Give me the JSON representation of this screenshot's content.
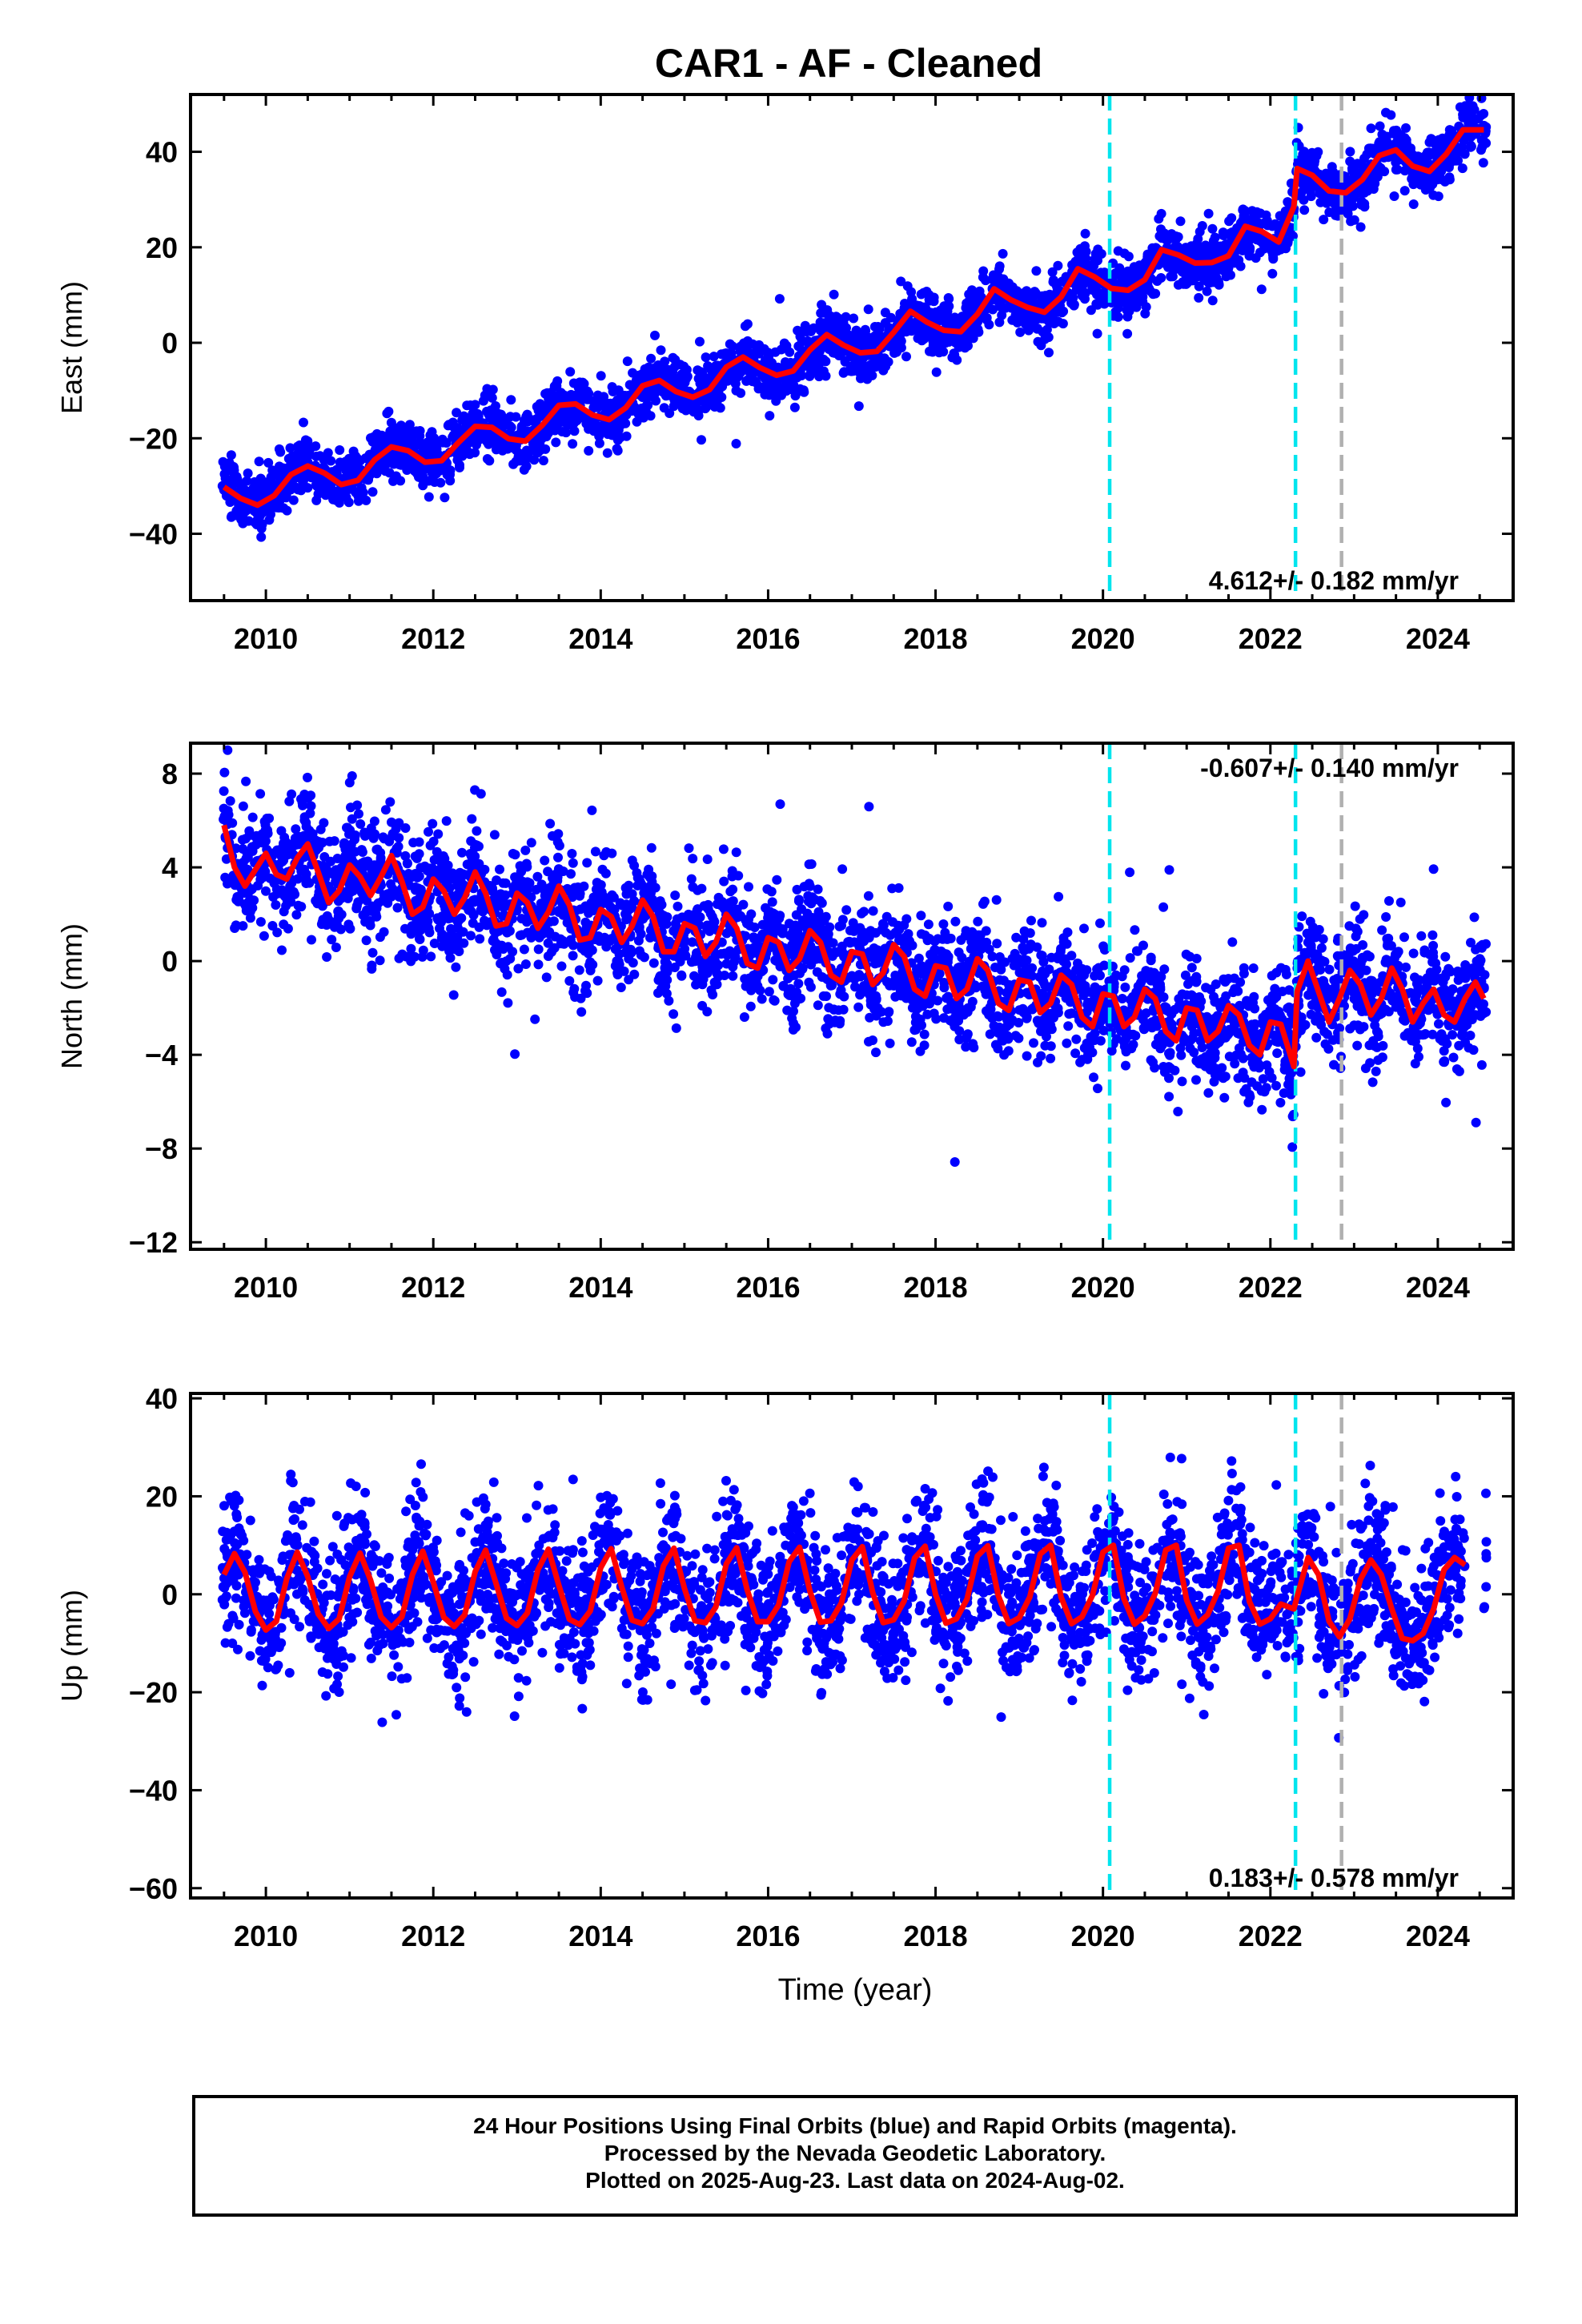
{
  "chart_data": {
    "title": "CAR1  - AF - Cleaned",
    "xlabel": "Time (year)",
    "xlim": [
      2009.1,
      2024.9
    ],
    "x_ticks": [
      "2010",
      "2012",
      "2014",
      "2016",
      "2018",
      "2020",
      "2022",
      "2024"
    ],
    "colors": {
      "observations": "#0000ff",
      "model": "#ff0000",
      "offset_cyan": "#00e5ee",
      "offset_gray": "#b0b0b0"
    },
    "offset_lines": [
      {
        "x": 2020.08,
        "color": "cyan"
      },
      {
        "x": 2022.3,
        "color": "cyan"
      },
      {
        "x": 2022.85,
        "color": "gray"
      }
    ],
    "panels": [
      {
        "type": "scatter",
        "ylabel": "East (mm)",
        "ylim": [
          -54,
          52
        ],
        "y_ticks": [
          "40",
          "20",
          "0",
          "−20",
          "−40"
        ],
        "rate_label": "4.612+/- 0.182 mm/yr",
        "rate_position": "bottom-right",
        "model_x": [
          2009.5,
          2009.7,
          2009.9,
          2010.1,
          2010.3,
          2010.5,
          2010.7,
          2010.9,
          2011.1,
          2011.3,
          2011.5,
          2011.7,
          2011.9,
          2012.1,
          2012.3,
          2012.5,
          2012.7,
          2012.9,
          2013.1,
          2013.3,
          2013.5,
          2013.7,
          2013.9,
          2014.1,
          2014.3,
          2014.5,
          2014.7,
          2014.9,
          2015.1,
          2015.3,
          2015.5,
          2015.7,
          2015.9,
          2016.1,
          2016.3,
          2016.5,
          2016.7,
          2016.9,
          2017.1,
          2017.3,
          2017.5,
          2017.7,
          2017.9,
          2018.1,
          2018.3,
          2018.5,
          2018.7,
          2018.9,
          2019.1,
          2019.3,
          2019.5,
          2019.7,
          2019.9,
          2020.1,
          2020.3,
          2020.5,
          2020.7,
          2020.9,
          2021.1,
          2021.3,
          2021.5,
          2021.7,
          2021.9,
          2022.1,
          2022.28,
          2022.32,
          2022.5,
          2022.7,
          2022.9,
          2023.1,
          2023.3,
          2023.5,
          2023.7,
          2023.9,
          2024.1,
          2024.3,
          2024.55
        ],
        "model_y": [
          -30.2,
          -32.6,
          -34.0,
          -32.0,
          -27.6,
          -25.8,
          -27.3,
          -29.7,
          -28.8,
          -24.5,
          -21.8,
          -22.6,
          -25.0,
          -24.7,
          -20.9,
          -17.5,
          -17.7,
          -20.1,
          -20.6,
          -17.3,
          -13.1,
          -12.8,
          -15.1,
          -16.1,
          -13.6,
          -9.0,
          -7.9,
          -10.2,
          -11.4,
          -9.8,
          -5.1,
          -3.0,
          -5.2,
          -6.8,
          -5.9,
          -1.5,
          1.7,
          -0.5,
          -2.1,
          -1.8,
          2.2,
          6.6,
          4.3,
          2.6,
          2.3,
          6.0,
          11.3,
          9.0,
          7.4,
          6.4,
          9.6,
          15.5,
          13.8,
          11.4,
          11.0,
          13.2,
          19.5,
          18.4,
          16.7,
          16.8,
          18.2,
          24.4,
          23.3,
          21.1,
          28.5,
          36.5,
          35.1,
          31.8,
          31.4,
          34.2,
          39.2,
          40.4,
          37.0,
          35.9,
          39.5,
          44.6,
          44.6
        ]
      },
      {
        "type": "scatter",
        "ylabel": "North (mm)",
        "ylim": [
          -12.3,
          9.3
        ],
        "y_ticks": [
          "8",
          "4",
          "0",
          "−4",
          "−8",
          "−12"
        ],
        "rate_label": "-0.607+/- 0.140 mm/yr",
        "rate_position": "top-right",
        "model_x": [
          2009.5,
          2009.625,
          2009.75,
          2009.875,
          2010.0,
          2010.125,
          2010.25,
          2010.375,
          2010.5,
          2010.625,
          2010.75,
          2010.875,
          2011.0,
          2011.125,
          2011.25,
          2011.375,
          2011.5,
          2011.625,
          2011.75,
          2011.875,
          2012.0,
          2012.125,
          2012.25,
          2012.375,
          2012.5,
          2012.625,
          2012.75,
          2012.875,
          2013.0,
          2013.125,
          2013.25,
          2013.375,
          2013.5,
          2013.625,
          2013.75,
          2013.875,
          2014.0,
          2014.125,
          2014.25,
          2014.375,
          2014.5,
          2014.625,
          2014.75,
          2014.875,
          2015.0,
          2015.125,
          2015.25,
          2015.375,
          2015.5,
          2015.625,
          2015.75,
          2015.875,
          2016.0,
          2016.125,
          2016.25,
          2016.375,
          2016.5,
          2016.625,
          2016.75,
          2016.875,
          2017.0,
          2017.125,
          2017.25,
          2017.375,
          2017.5,
          2017.625,
          2017.75,
          2017.875,
          2018.0,
          2018.125,
          2018.25,
          2018.375,
          2018.5,
          2018.625,
          2018.75,
          2018.875,
          2019.0,
          2019.125,
          2019.25,
          2019.375,
          2019.5,
          2019.625,
          2019.75,
          2019.875,
          2020.0,
          2020.125,
          2020.25,
          2020.375,
          2020.5,
          2020.625,
          2020.75,
          2020.875,
          2021.0,
          2021.125,
          2021.25,
          2021.375,
          2021.5,
          2021.625,
          2021.75,
          2021.875,
          2022.0,
          2022.125,
          2022.28,
          2022.32,
          2022.45,
          2022.575,
          2022.7,
          2022.825,
          2022.95,
          2023.075,
          2023.2,
          2023.325,
          2023.45,
          2023.575,
          2023.7,
          2023.825,
          2023.95,
          2024.075,
          2024.2,
          2024.325,
          2024.45,
          2024.55
        ],
        "model_y": [
          5.8,
          4.0,
          3.2,
          3.9,
          4.6,
          3.7,
          3.5,
          4.4,
          5.0,
          3.8,
          2.5,
          3.0,
          4.1,
          3.6,
          2.8,
          3.6,
          4.5,
          3.4,
          2.0,
          2.3,
          3.5,
          3.0,
          2.0,
          2.7,
          3.8,
          2.9,
          1.5,
          1.6,
          2.9,
          2.5,
          1.4,
          2.1,
          3.2,
          2.4,
          0.9,
          1.0,
          2.2,
          1.9,
          0.8,
          1.5,
          2.6,
          1.9,
          0.4,
          0.4,
          1.6,
          1.4,
          0.2,
          0.8,
          2.0,
          1.4,
          -0.1,
          -0.3,
          1.0,
          0.8,
          -0.4,
          0.1,
          1.3,
          0.8,
          -0.6,
          -0.9,
          0.4,
          0.3,
          -1.0,
          -0.5,
          0.7,
          0.2,
          -1.2,
          -1.5,
          -0.2,
          -0.3,
          -1.6,
          -1.2,
          0.1,
          -0.4,
          -1.8,
          -2.1,
          -0.8,
          -0.9,
          -2.2,
          -1.8,
          -0.6,
          -1.0,
          -2.4,
          -2.8,
          -1.4,
          -1.5,
          -2.8,
          -2.4,
          -1.2,
          -1.6,
          -3.0,
          -3.4,
          -2.0,
          -2.1,
          -3.4,
          -3.0,
          -1.9,
          -2.3,
          -3.6,
          -4.0,
          -2.6,
          -2.7,
          -4.5,
          -1.3,
          0.0,
          -1.3,
          -2.6,
          -1.6,
          -0.4,
          -1.0,
          -2.3,
          -1.6,
          -0.3,
          -1.2,
          -2.6,
          -1.8,
          -1.2,
          -2.3,
          -2.6,
          -1.6,
          -0.9,
          -1.6
        ]
      },
      {
        "type": "scatter",
        "ylabel": "Up (mm)",
        "ylim": [
          -62,
          41
        ],
        "y_ticks": [
          "40",
          "20",
          "0",
          "−20",
          "−40",
          "−60"
        ],
        "rate_label": "0.183+/- 0.578 mm/yr",
        "rate_position": "bottom-right",
        "model_x": [
          2009.5,
          2009.625,
          2009.75,
          2009.875,
          2010.0,
          2010.125,
          2010.25,
          2010.375,
          2010.5,
          2010.625,
          2010.75,
          2010.875,
          2011.0,
          2011.125,
          2011.25,
          2011.375,
          2011.5,
          2011.625,
          2011.75,
          2011.875,
          2012.0,
          2012.125,
          2012.25,
          2012.375,
          2012.5,
          2012.625,
          2012.75,
          2012.875,
          2013.0,
          2013.125,
          2013.25,
          2013.375,
          2013.5,
          2013.625,
          2013.75,
          2013.875,
          2014.0,
          2014.125,
          2014.25,
          2014.375,
          2014.5,
          2014.625,
          2014.75,
          2014.875,
          2015.0,
          2015.125,
          2015.25,
          2015.375,
          2015.5,
          2015.625,
          2015.75,
          2015.875,
          2016.0,
          2016.125,
          2016.25,
          2016.375,
          2016.5,
          2016.625,
          2016.75,
          2016.875,
          2017.0,
          2017.125,
          2017.25,
          2017.375,
          2017.5,
          2017.625,
          2017.75,
          2017.875,
          2018.0,
          2018.125,
          2018.25,
          2018.375,
          2018.5,
          2018.625,
          2018.75,
          2018.875,
          2019.0,
          2019.125,
          2019.25,
          2019.375,
          2019.5,
          2019.625,
          2019.75,
          2019.875,
          2020.0,
          2020.125,
          2020.25,
          2020.375,
          2020.5,
          2020.625,
          2020.75,
          2020.875,
          2021.0,
          2021.125,
          2021.25,
          2021.375,
          2021.5,
          2021.625,
          2021.75,
          2021.875,
          2022.0,
          2022.125,
          2022.28,
          2022.32,
          2022.45,
          2022.575,
          2022.7,
          2022.825,
          2022.95,
          2023.075,
          2023.2,
          2023.325,
          2023.45,
          2023.575,
          2023.7,
          2023.825,
          2023.95,
          2024.075,
          2024.2,
          2024.325,
          2024.45,
          2024.55
        ],
        "model_y": [
          4.0,
          8.3,
          4.5,
          -3.5,
          -7.3,
          -5.5,
          3.2,
          8.6,
          3.6,
          -4.0,
          -7.0,
          -5.0,
          3.6,
          8.4,
          2.9,
          -4.6,
          -6.8,
          -4.6,
          4.0,
          8.8,
          2.5,
          -4.7,
          -6.6,
          -4.2,
          4.6,
          9.0,
          2.2,
          -4.9,
          -6.4,
          -3.8,
          5.0,
          9.2,
          1.8,
          -5.1,
          -6.2,
          -3.4,
          5.4,
          9.3,
          1.5,
          -5.3,
          -6.0,
          -3.0,
          5.8,
          9.4,
          1.2,
          -5.4,
          -5.8,
          -2.6,
          6.2,
          9.5,
          0.9,
          -5.6,
          -5.6,
          -2.2,
          6.6,
          9.6,
          0.6,
          -5.7,
          -5.4,
          -1.8,
          7.0,
          9.7,
          0.3,
          -5.8,
          -5.2,
          -1.4,
          7.4,
          9.8,
          0.0,
          -5.9,
          -5.0,
          -1.0,
          7.8,
          9.9,
          -0.3,
          -6.0,
          -4.8,
          -0.6,
          8.2,
          10.0,
          -0.6,
          -6.0,
          -4.6,
          -0.2,
          8.6,
          10.0,
          -0.9,
          -6.1,
          -4.4,
          0.2,
          9.0,
          10.0,
          -1.2,
          -6.1,
          -4.2,
          0.6,
          9.4,
          10.0,
          -1.5,
          -6.1,
          -5.0,
          -2.0,
          -3.0,
          -0.5,
          7.5,
          4.0,
          -5.5,
          -8.7,
          -5.0,
          3.0,
          7.0,
          4.0,
          -3.0,
          -9.0,
          -9.5,
          -8.0,
          -3.0,
          5.0,
          7.5,
          6.0
        ]
      }
    ],
    "footer": [
      "24 Hour Positions Using Final Orbits (blue) and Rapid Orbits (magenta).",
      "Processed by the Nevada Geodetic Laboratory.",
      "Plotted on 2025-Aug-23. Last data on 2024-Aug-02."
    ]
  }
}
